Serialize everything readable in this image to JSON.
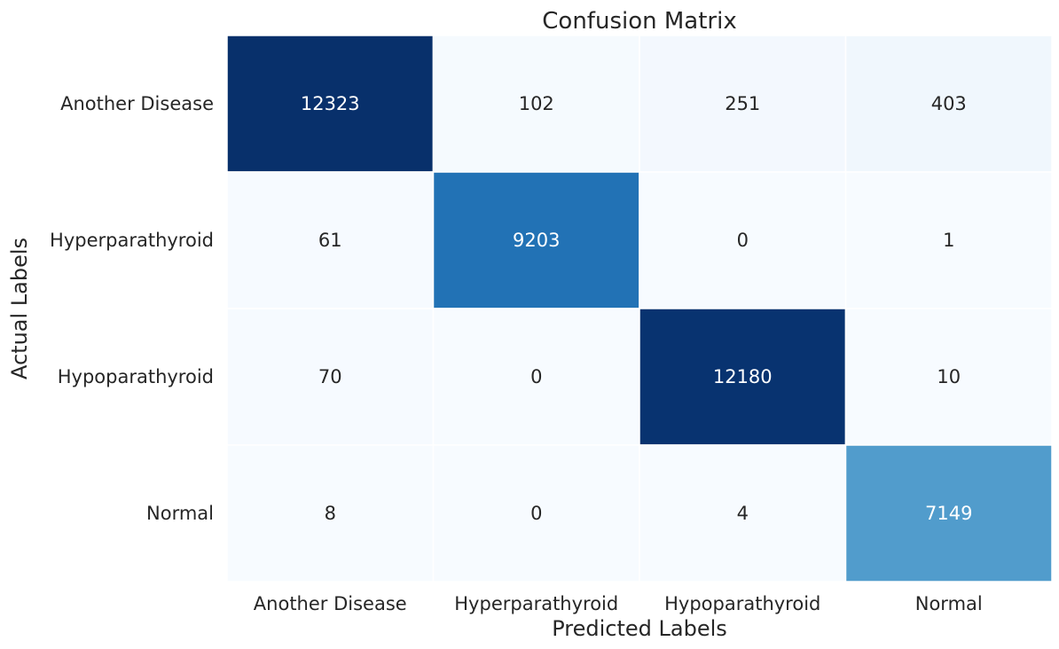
{
  "chart_data": {
    "type": "heatmap",
    "title": "Confusion Matrix",
    "xlabel": "Predicted Labels",
    "ylabel": "Actual Labels",
    "x_categories": [
      "Another Disease",
      "Hyperparathyroid",
      "Hypoparathyroid",
      "Normal"
    ],
    "y_categories": [
      "Another Disease",
      "Hyperparathyroid",
      "Hypoparathyroid",
      "Normal"
    ],
    "values": [
      [
        12323,
        102,
        251,
        403
      ],
      [
        61,
        9203,
        0,
        1
      ],
      [
        70,
        0,
        12180,
        10
      ],
      [
        8,
        0,
        4,
        7149
      ]
    ],
    "colormap": "Blues",
    "colorbar": false,
    "vmin": 0,
    "vmax": 12323
  }
}
